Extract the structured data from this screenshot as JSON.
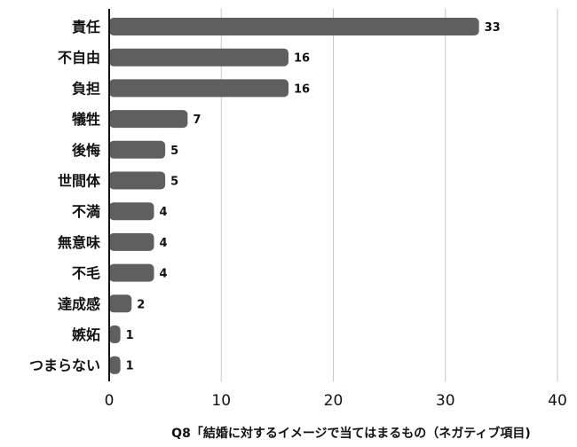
{
  "chart_data": {
    "type": "bar",
    "orientation": "horizontal",
    "categories": [
      "責任",
      "不自由",
      "負担",
      "犠牲",
      "後悔",
      "世間体",
      "不満",
      "無意味",
      "不毛",
      "達成感",
      "嫉妬",
      "つまらない"
    ],
    "values": [
      33,
      16,
      16,
      7,
      5,
      5,
      4,
      4,
      4,
      2,
      1,
      1
    ],
    "xlim": [
      0,
      40
    ],
    "xticks": [
      0,
      10,
      20,
      30,
      40
    ],
    "xtick_labels": [
      "0",
      "10",
      "20",
      "30",
      "40"
    ],
    "xlabel": "Q8「結婚に対するイメージで当てはまるもの（ネガティブ項目)",
    "title": "",
    "ylabel": "",
    "grid": "vertical",
    "legend": "none",
    "bar_color": "#5f5f5f",
    "grid_color": "#c8c8c8",
    "axis_color": "#111111"
  }
}
